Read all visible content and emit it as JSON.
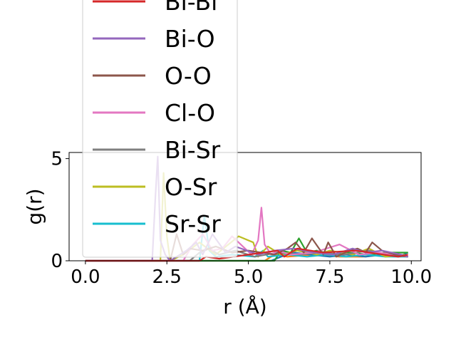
{
  "chart_data": {
    "type": "line",
    "title": "",
    "xlabel": "r (Å)",
    "ylabel": "g(r)",
    "xlim": [
      -0.5,
      10.3
    ],
    "ylim": [
      0,
      5.3
    ],
    "xticks": [
      0.0,
      2.5,
      5.0,
      7.5,
      10.0
    ],
    "xtick_labels": [
      "0.0",
      "2.5",
      "5.0",
      "7.5",
      "10.0"
    ],
    "yticks": [
      0,
      5
    ],
    "ytick_labels": [
      "0",
      "5"
    ],
    "grid": false,
    "legend_position": "upper-left (extends above plot area)",
    "series": [
      {
        "name": "Bi-Bi",
        "color": "#d62728",
        "x": [
          0,
          2.0,
          3.5,
          3.7,
          4.1,
          5.9,
          6.1,
          6.5,
          7.3,
          8.3,
          9.6,
          9.9
        ],
        "y": [
          0,
          0,
          0,
          0.2,
          0.1,
          0.5,
          0.2,
          0.6,
          0.4,
          0.5,
          0.2,
          0.3
        ]
      },
      {
        "name": "Bi-O",
        "color": "#9467bd",
        "x": [
          0,
          2.05,
          2.15,
          2.22,
          2.3,
          2.45,
          2.6,
          3.1,
          3.4,
          3.6,
          3.9,
          4.3,
          4.6,
          5.3,
          5.8,
          6.4,
          7.0,
          7.6,
          8.2,
          8.6,
          9.1,
          9.7,
          9.9
        ],
        "y": [
          0,
          0,
          3.2,
          5.1,
          1.0,
          0.3,
          0,
          0.5,
          0.9,
          0.3,
          1.3,
          0.4,
          0.7,
          0.3,
          0.5,
          0.6,
          0.4,
          0.3,
          0.6,
          0.4,
          0.5,
          0.3,
          0.2
        ]
      },
      {
        "name": "O-O",
        "color": "#8c564b",
        "x": [
          0,
          2.6,
          2.8,
          3.0,
          3.2,
          3.6,
          4.0,
          4.5,
          5.0,
          5.8,
          6.2,
          6.45,
          6.7,
          6.95,
          7.3,
          7.45,
          7.7,
          8.1,
          8.35,
          8.6,
          8.8,
          9.1,
          9.5,
          9.9
        ],
        "y": [
          0,
          0,
          1.3,
          0.3,
          0.6,
          0.5,
          0.7,
          0.4,
          0.5,
          0.3,
          0.6,
          0.9,
          0.4,
          1.1,
          0.3,
          0.9,
          0.2,
          0.5,
          0.6,
          0.4,
          0.9,
          0.5,
          0.3,
          0.2
        ]
      },
      {
        "name": "Cl-O",
        "color": "#e377c2",
        "x": [
          0,
          3.0,
          3.3,
          3.6,
          3.9,
          4.2,
          4.5,
          5.1,
          5.3,
          5.4,
          5.5,
          5.7,
          5.9,
          6.3,
          7.0,
          7.8,
          8.4,
          9.0,
          9.5,
          9.9
        ],
        "y": [
          0,
          0,
          0.8,
          1.3,
          0.5,
          0.6,
          1.2,
          0.3,
          1.0,
          2.6,
          0.8,
          0.3,
          0.5,
          0.3,
          0.4,
          0.8,
          0.3,
          0.4,
          0.3,
          0.2
        ]
      },
      {
        "name": "Bi-Sr",
        "color": "#7f7f7f",
        "x": [
          0,
          3.2,
          3.5,
          3.8,
          4.1,
          4.6,
          5.2,
          5.9,
          6.6,
          7.2,
          7.9,
          8.7,
          9.3,
          9.9
        ],
        "y": [
          0,
          0,
          0.4,
          0.6,
          0.3,
          0.5,
          0.2,
          0.4,
          0.3,
          0.4,
          0.3,
          0.5,
          0.3,
          0.2
        ]
      },
      {
        "name": "O-Sr",
        "color": "#bcbd22",
        "x": [
          0,
          2.3,
          2.4,
          2.5,
          2.6,
          3.0,
          3.5,
          4.0,
          4.7,
          5.15,
          5.3,
          5.6,
          6.0,
          6.5,
          7.1,
          7.5,
          8.2,
          8.7,
          9.2,
          9.8
        ],
        "y": [
          0,
          0,
          4.3,
          1.2,
          0,
          0.3,
          0.9,
          0.3,
          1.2,
          0.9,
          0.2,
          0.7,
          0.3,
          0.5,
          0.3,
          0.5,
          0.3,
          0.6,
          0.2,
          0.3
        ]
      },
      {
        "name": "Sr-Sr",
        "color": "#17becf",
        "x": [
          0,
          3.5,
          3.65,
          3.8,
          4.0,
          4.5,
          5.2,
          5.45,
          5.6,
          6.2,
          6.8,
          7.4,
          8.0,
          8.6,
          9.2,
          9.9
        ],
        "y": [
          0,
          0,
          2.2,
          0.5,
          0.2,
          0.3,
          0.2,
          0.5,
          0.2,
          0.3,
          0.2,
          0.3,
          0.2,
          0.3,
          0.2,
          0.2
        ]
      },
      {
        "name": "",
        "color": "#2ca02c",
        "x": [
          0,
          5.8,
          6.0,
          6.3,
          6.55,
          6.8,
          7.1,
          7.6,
          8.1,
          8.7,
          9.2,
          9.9
        ],
        "y": [
          0,
          0,
          0.5,
          0.4,
          1.1,
          0.4,
          0.5,
          0.3,
          0.4,
          0.3,
          0.4,
          0.4
        ]
      },
      {
        "name": "",
        "color": "#1f77b4",
        "x": [
          0,
          5.7,
          6.0,
          6.4,
          6.9,
          7.5,
          8.0,
          8.6,
          9.1,
          9.6,
          9.9
        ],
        "y": [
          0,
          0,
          0.2,
          0.4,
          0.3,
          0.2,
          0.3,
          0.2,
          0.3,
          0.2,
          0.4
        ]
      },
      {
        "name": "",
        "color": "#ff7f0e",
        "x": [
          0,
          5.5,
          5.8,
          6.2,
          7.0,
          7.8,
          8.5,
          9.3,
          9.9
        ],
        "y": [
          0,
          0,
          0.3,
          0.2,
          0.3,
          0.2,
          0.2,
          0.3,
          0.2
        ]
      }
    ]
  }
}
